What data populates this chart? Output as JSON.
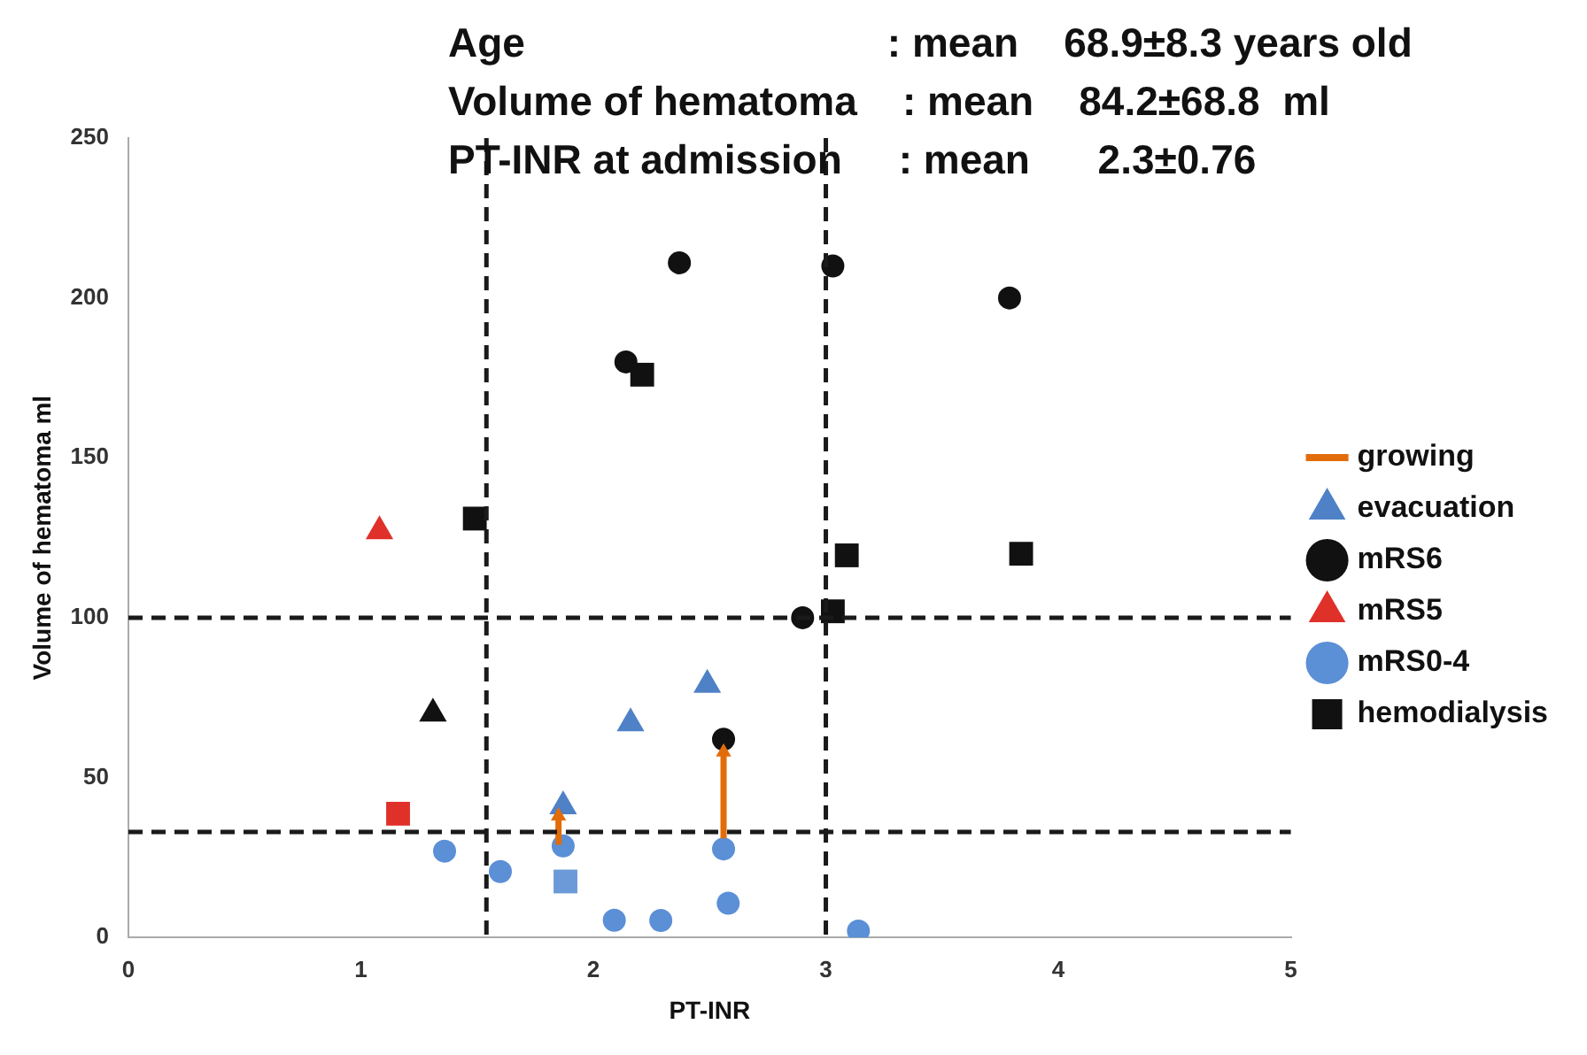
{
  "chart_data": {
    "type": "scatter",
    "xlabel": "PT-INR",
    "ylabel": "Volume of hematoma ml",
    "annotations": [
      "Age                                : mean    68.9±8.3 years old",
      "Volume of hematoma    : mean    84.2±68.8  ml",
      "PT-INR at admission     : mean      2.3±0.76"
    ],
    "xlim": [
      0,
      5
    ],
    "xticks": [
      0,
      1,
      2,
      3,
      4,
      5
    ],
    "ylim": [
      0,
      250
    ],
    "yticks": [
      0,
      50,
      100,
      150,
      200,
      250
    ],
    "grid": false,
    "legend": "right",
    "ref_lines": [
      {
        "axis": "x",
        "value": 1.54,
        "color": "#1a1a1a",
        "line_style": "dashed"
      },
      {
        "axis": "x",
        "value": 3.0,
        "color": "#1a1a1a",
        "line_style": "dashed"
      },
      {
        "axis": "y",
        "value": 100,
        "color": "#1a1a1a",
        "line_style": "dashed"
      },
      {
        "axis": "y",
        "value": 33,
        "color": "#1a1a1a",
        "line_style": "dashed"
      }
    ],
    "series": [
      {
        "name": "growing",
        "type": "line",
        "color": "#e36c0a",
        "marker": "triangle",
        "x": [
          1.85,
          1.85
        ],
        "values": [
          29,
          38
        ]
      },
      {
        "type": "line",
        "color": "#e36c0a",
        "marker": "triangle",
        "x": [
          2.56,
          2.56
        ],
        "values": [
          31,
          58
        ]
      },
      {
        "name": "evacuation",
        "color": "#4f81c7",
        "marker": "triangle",
        "x": [
          2.49,
          2.16,
          1.87
        ],
        "values": [
          79,
          67,
          41
        ]
      },
      {
        "name": "mRS6",
        "color": "#111111",
        "marker": "circle",
        "x": [
          2.37,
          3.03,
          3.79,
          2.14,
          2.9,
          2.56
        ],
        "values": [
          211,
          210,
          200,
          180,
          100,
          62
        ]
      },
      {
        "name": "mRS5",
        "color": "#e0302a",
        "marker": "triangle",
        "x": [
          1.08
        ],
        "values": [
          127
        ]
      },
      {
        "name": "mRS0-4",
        "color": "#5b8fd6",
        "marker": "circle",
        "x": [
          1.36,
          1.6,
          1.87,
          2.56,
          2.58,
          2.09,
          2.29,
          3.14
        ],
        "values": [
          27,
          20.6,
          28.6,
          27.7,
          10.7,
          5.4,
          5.3,
          2
        ]
      },
      {
        "name": "hemodialysis",
        "color": "#111111",
        "marker": "square",
        "x": [
          2.21,
          1.49,
          3.09,
          3.84,
          3.03
        ],
        "values": [
          176,
          131,
          119.5,
          120,
          102
        ]
      },
      {
        "color": "#111111",
        "marker": "triangle",
        "x": [
          1.31
        ],
        "values": [
          70
        ]
      },
      {
        "color": "#e0302a",
        "marker": "square",
        "x": [
          1.16
        ],
        "values": [
          38.7
        ]
      },
      {
        "color": "#6c9ad8",
        "marker": "square",
        "x": [
          1.88
        ],
        "values": [
          17.5
        ]
      }
    ]
  }
}
